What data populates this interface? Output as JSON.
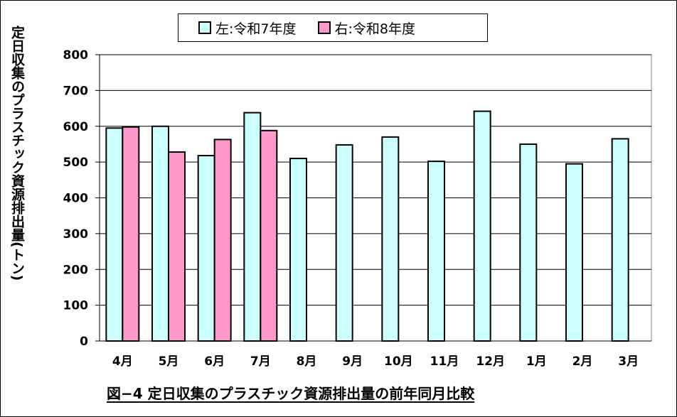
{
  "chart_data": {
    "type": "bar",
    "categories": [
      "4月",
      "5月",
      "6月",
      "7月",
      "8月",
      "9月",
      "10月",
      "11月",
      "12月",
      "1月",
      "2月",
      "3月"
    ],
    "series": [
      {
        "name": "左:令和7年度",
        "color": "#ccffff",
        "values": [
          595,
          600,
          518,
          638,
          510,
          548,
          570,
          502,
          642,
          550,
          495,
          565
        ]
      },
      {
        "name": "右:令和8年度",
        "color": "#ff99cc",
        "values": [
          598,
          528,
          563,
          588,
          null,
          null,
          null,
          null,
          null,
          null,
          null,
          null
        ]
      }
    ],
    "title": "図−4 定日収集のプラスチック資源排出量の前年同月比較",
    "ylabel": "定日収集のプラスチック資源排出量(トン)",
    "xlabel": "",
    "ylim": [
      0,
      800
    ],
    "yticks": [
      0,
      100,
      200,
      300,
      400,
      500,
      600,
      700,
      800
    ],
    "grid": true,
    "legend_position": "top"
  }
}
